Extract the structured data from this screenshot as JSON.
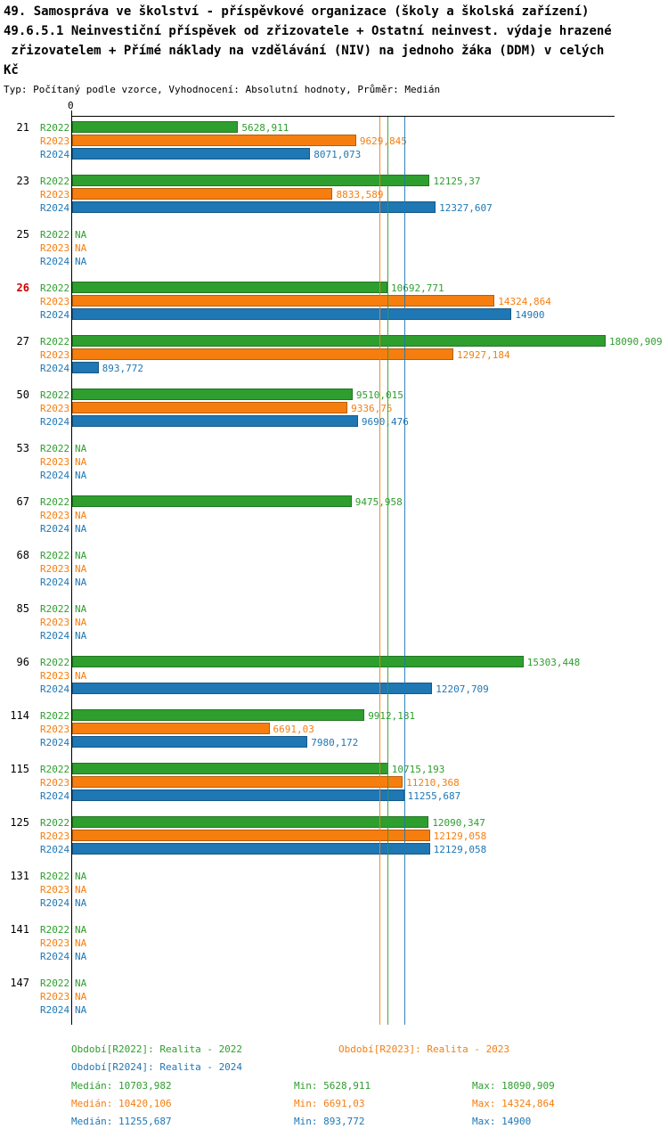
{
  "header": {
    "line1": "49. Samospráva ve školství - příspěvkové organizace (školy a školská zařízení)",
    "line2": "49.6.5.1 Neinvestiční příspěvek od zřizovatele + Ostatní neinvest. výdaje hrazené",
    "line3": " zřizovatelem + Přímé náklady na vzdělávání (NIV) na jednoho žáka (DDM) v celých",
    "line4": "Kč",
    "subtitle": "Typ: Počítaný podle vzorce, Vyhodnocení: Absolutní hodnoty, Průměr: Medián"
  },
  "chart_data": {
    "type": "bar",
    "orientation": "horizontal",
    "x_axis": {
      "origin_label": "0",
      "min": 0,
      "max_value_shown": 18090.909
    },
    "na_label": "NA",
    "highlight_color": "#cc0000",
    "series": [
      {
        "name": "R2022",
        "color": "#2e9e2e"
      },
      {
        "name": "R2023",
        "color": "#f57e0f"
      },
      {
        "name": "R2024",
        "color": "#1f77b4"
      }
    ],
    "groups": [
      {
        "id": "21",
        "highlight": false,
        "values": [
          {
            "label": "5628,911",
            "value": 5628.911
          },
          {
            "label": "9629,845",
            "value": 9629.845
          },
          {
            "label": "8071,073",
            "value": 8071.073
          }
        ]
      },
      {
        "id": "23",
        "highlight": false,
        "values": [
          {
            "label": "12125,37",
            "value": 12125.37
          },
          {
            "label": "8833,589",
            "value": 8833.589
          },
          {
            "label": "12327,607",
            "value": 12327.607
          }
        ]
      },
      {
        "id": "25",
        "highlight": false,
        "values": [
          {
            "label": "NA",
            "value": null
          },
          {
            "label": "NA",
            "value": null
          },
          {
            "label": "NA",
            "value": null
          }
        ]
      },
      {
        "id": "26",
        "highlight": true,
        "values": [
          {
            "label": "10692,771",
            "value": 10692.771
          },
          {
            "label": "14324,864",
            "value": 14324.864
          },
          {
            "label": "14900",
            "value": 14900
          }
        ]
      },
      {
        "id": "27",
        "highlight": false,
        "values": [
          {
            "label": "18090,909",
            "value": 18090.909
          },
          {
            "label": "12927,184",
            "value": 12927.184
          },
          {
            "label": "893,772",
            "value": 893.772
          }
        ]
      },
      {
        "id": "50",
        "highlight": false,
        "values": [
          {
            "label": "9510,015",
            "value": 9510.015
          },
          {
            "label": "9336,75",
            "value": 9336.75
          },
          {
            "label": "9690,476",
            "value": 9690.476
          }
        ]
      },
      {
        "id": "53",
        "highlight": false,
        "values": [
          {
            "label": "NA",
            "value": null
          },
          {
            "label": "NA",
            "value": null
          },
          {
            "label": "NA",
            "value": null
          }
        ]
      },
      {
        "id": "67",
        "highlight": false,
        "values": [
          {
            "label": "9475,958",
            "value": 9475.958
          },
          {
            "label": "NA",
            "value": null
          },
          {
            "label": "NA",
            "value": null
          }
        ]
      },
      {
        "id": "68",
        "highlight": false,
        "values": [
          {
            "label": "NA",
            "value": null
          },
          {
            "label": "NA",
            "value": null
          },
          {
            "label": "NA",
            "value": null
          }
        ]
      },
      {
        "id": "85",
        "highlight": false,
        "values": [
          {
            "label": "NA",
            "value": null
          },
          {
            "label": "NA",
            "value": null
          },
          {
            "label": "NA",
            "value": null
          }
        ]
      },
      {
        "id": "96",
        "highlight": false,
        "values": [
          {
            "label": "15303,448",
            "value": 15303.448
          },
          {
            "label": "NA",
            "value": null
          },
          {
            "label": "12207,709",
            "value": 12207.709
          }
        ]
      },
      {
        "id": "114",
        "highlight": false,
        "values": [
          {
            "label": "9912,181",
            "value": 9912.181
          },
          {
            "label": "6691,03",
            "value": 6691.03
          },
          {
            "label": "7980,172",
            "value": 7980.172
          }
        ]
      },
      {
        "id": "115",
        "highlight": false,
        "values": [
          {
            "label": "10715,193",
            "value": 10715.193
          },
          {
            "label": "11210,368",
            "value": 11210.368
          },
          {
            "label": "11255,687",
            "value": 11255.687
          }
        ]
      },
      {
        "id": "125",
        "highlight": false,
        "values": [
          {
            "label": "12090,347",
            "value": 12090.347
          },
          {
            "label": "12129,058",
            "value": 12129.058
          },
          {
            "label": "12129,058",
            "value": 12129.058
          }
        ]
      },
      {
        "id": "131",
        "highlight": false,
        "values": [
          {
            "label": "NA",
            "value": null
          },
          {
            "label": "NA",
            "value": null
          },
          {
            "label": "NA",
            "value": null
          }
        ]
      },
      {
        "id": "141",
        "highlight": false,
        "values": [
          {
            "label": "NA",
            "value": null
          },
          {
            "label": "NA",
            "value": null
          },
          {
            "label": "NA",
            "value": null
          }
        ]
      },
      {
        "id": "147",
        "highlight": false,
        "values": [
          {
            "label": "NA",
            "value": null
          },
          {
            "label": "NA",
            "value": null
          },
          {
            "label": "NA",
            "value": null
          }
        ]
      }
    ],
    "median_lines": [
      {
        "series": "R2022",
        "value": 10703.982
      },
      {
        "series": "R2023",
        "value": 10420.106
      },
      {
        "series": "R2024",
        "value": 11255.687
      }
    ]
  },
  "legend": {
    "items": [
      {
        "series": "R2022",
        "label": "Období[R2022]: Realita - 2022"
      },
      {
        "series": "R2023",
        "label": "Období[R2023]: Realita - 2023"
      },
      {
        "series": "R2024",
        "label": "Období[R2024]: Realita - 2024"
      }
    ]
  },
  "stats": {
    "rows": [
      {
        "series": "R2022",
        "median": "Medián: 10703,982",
        "min": "Min: 5628,911",
        "max": "Max: 18090,909"
      },
      {
        "series": "R2023",
        "median": "Medián: 10420,106",
        "min": "Min: 6691,03",
        "max": "Max: 14324,864"
      },
      {
        "series": "R2024",
        "median": "Medián: 11255,687",
        "min": "Min: 893,772",
        "max": "Max: 14900"
      }
    ]
  }
}
